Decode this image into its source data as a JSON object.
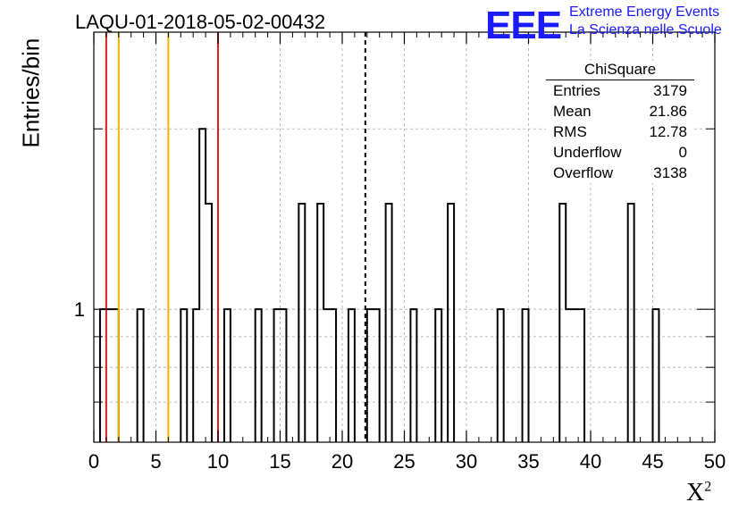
{
  "title": "LAQU-01-2018-05-02-00432",
  "logo": {
    "mark": "EEE",
    "line1": "Extreme Energy Events",
    "line2": "La Scienza nelle Scuole",
    "color": "#1a1aff"
  },
  "stats": {
    "title": "ChiSquare",
    "rows": [
      {
        "label": "Entries",
        "value": "3179"
      },
      {
        "label": "Mean",
        "value": "21.86"
      },
      {
        "label": "RMS",
        "value": "12.78"
      },
      {
        "label": "Underflow",
        "value": "0"
      },
      {
        "label": "Overflow",
        "value": "3138"
      }
    ]
  },
  "chart_data": {
    "type": "histogram",
    "xlabel": "X",
    "xlabel_sup": "2",
    "ylabel": "Entries/bin",
    "xlim": [
      0,
      50
    ],
    "ylim": [
      0.6,
      2.9
    ],
    "yscale": "log",
    "x_ticks": [
      0,
      5,
      10,
      15,
      20,
      25,
      30,
      35,
      40,
      45,
      50
    ],
    "y_tick_labels": [
      {
        "value": 1,
        "label": "1"
      }
    ],
    "bin_width": 0.5,
    "bars": [
      {
        "x": 0.5,
        "y": 1
      },
      {
        "x": 1.0,
        "y": 1
      },
      {
        "x": 1.5,
        "y": 1
      },
      {
        "x": 3.5,
        "y": 1
      },
      {
        "x": 7.0,
        "y": 1
      },
      {
        "x": 8.0,
        "y": 1
      },
      {
        "x": 8.5,
        "y": 2
      },
      {
        "x": 9.0,
        "y": 1.5
      },
      {
        "x": 10.5,
        "y": 1
      },
      {
        "x": 13.0,
        "y": 1
      },
      {
        "x": 14.5,
        "y": 1
      },
      {
        "x": 15.0,
        "y": 1
      },
      {
        "x": 16.5,
        "y": 1.5
      },
      {
        "x": 18.0,
        "y": 1.5
      },
      {
        "x": 18.5,
        "y": 1
      },
      {
        "x": 19.0,
        "y": 1
      },
      {
        "x": 20.5,
        "y": 1
      },
      {
        "x": 22.0,
        "y": 1
      },
      {
        "x": 22.5,
        "y": 1
      },
      {
        "x": 23.5,
        "y": 1.5
      },
      {
        "x": 25.5,
        "y": 1
      },
      {
        "x": 27.5,
        "y": 1
      },
      {
        "x": 28.5,
        "y": 1.5
      },
      {
        "x": 32.5,
        "y": 1
      },
      {
        "x": 34.5,
        "y": 1
      },
      {
        "x": 37.5,
        "y": 1.5
      },
      {
        "x": 38.0,
        "y": 1
      },
      {
        "x": 38.5,
        "y": 1
      },
      {
        "x": 39.0,
        "y": 1
      },
      {
        "x": 43.0,
        "y": 1.5
      },
      {
        "x": 45.0,
        "y": 1
      }
    ],
    "vlines": [
      {
        "x": 1,
        "color": "#e02020",
        "style": "solid"
      },
      {
        "x": 2,
        "color": "#f0b400",
        "style": "solid"
      },
      {
        "x": 6,
        "color": "#f0b400",
        "style": "solid"
      },
      {
        "x": 10,
        "color": "#e02020",
        "style": "solid"
      },
      {
        "x": 21.86,
        "color": "#000000",
        "style": "dashed"
      }
    ],
    "grid": true
  }
}
